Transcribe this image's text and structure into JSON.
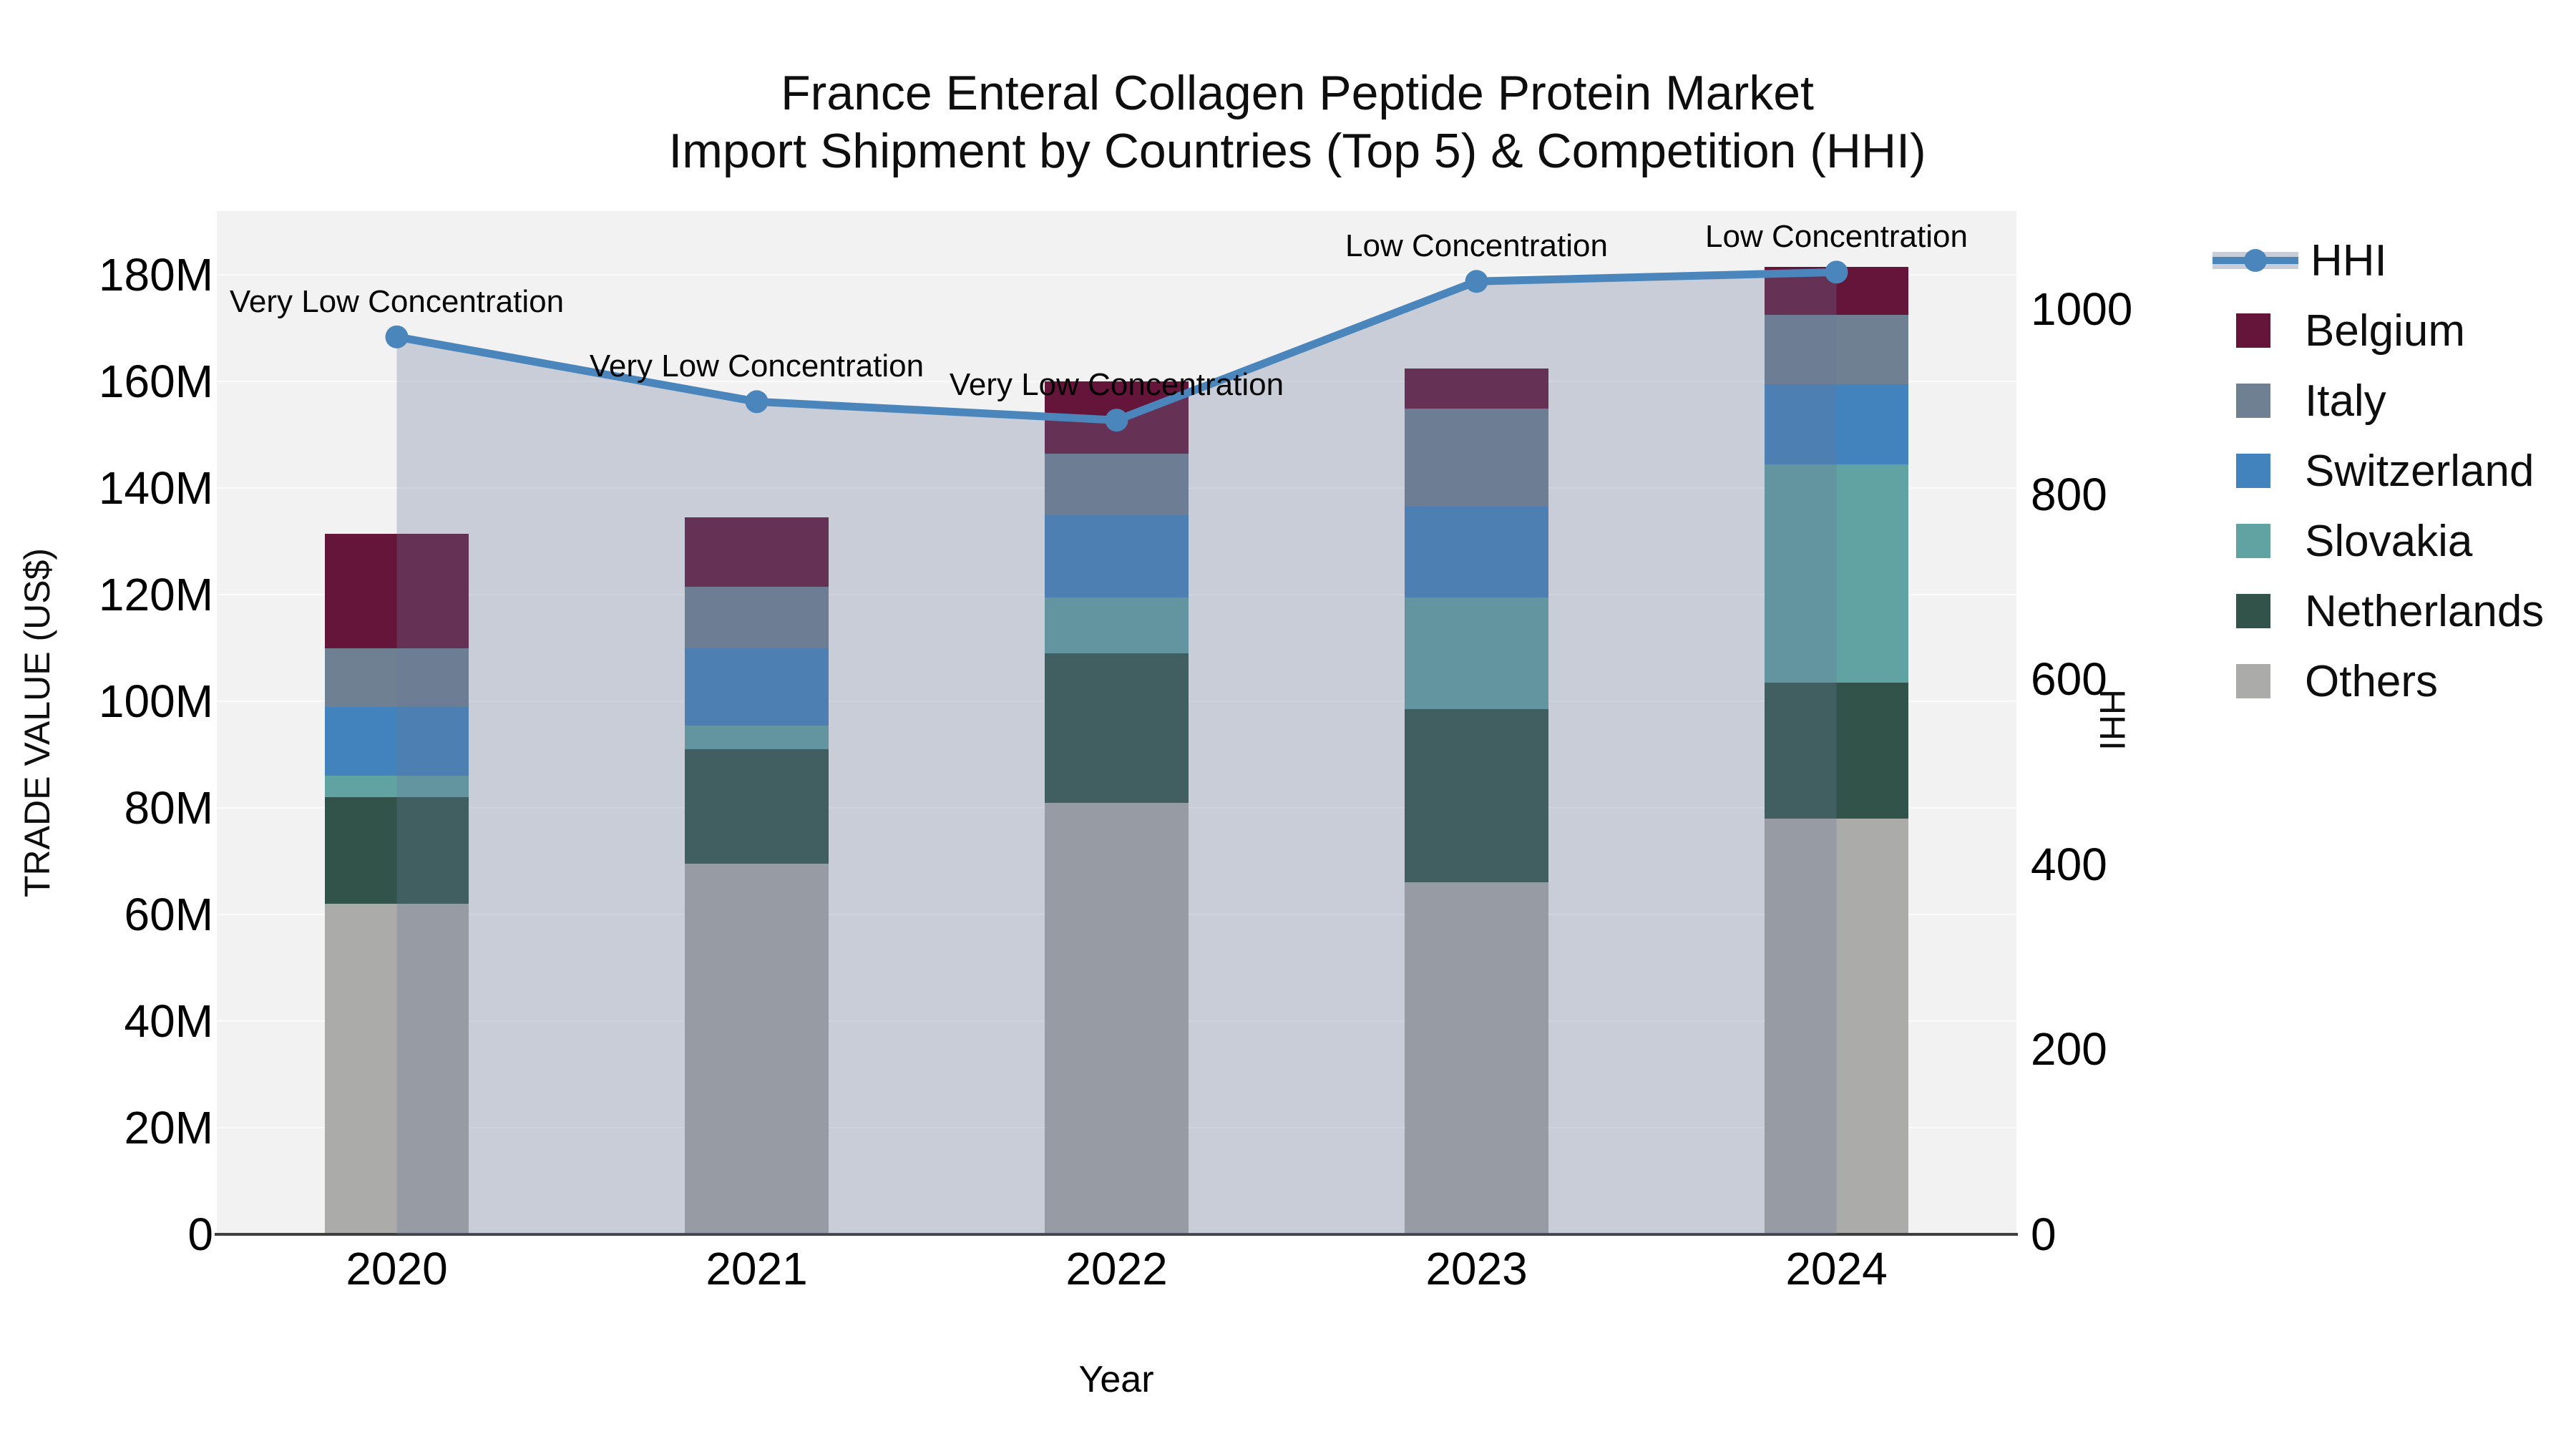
{
  "title": {
    "line1": "France Enteral Collagen Peptide Protein Market",
    "line2": "Import Shipment by Countries (Top 5) & Competition (HHI)"
  },
  "axes": {
    "x_title": "Year",
    "y_left_title": "TRADE VALUE (US$)",
    "y_right_title": "HHI",
    "y_left_ticks": [
      "0",
      "20M",
      "40M",
      "60M",
      "80M",
      "100M",
      "120M",
      "140M",
      "160M",
      "180M"
    ],
    "y_left_tick_values": [
      0,
      20,
      40,
      60,
      80,
      100,
      120,
      140,
      160,
      180
    ],
    "y_right_ticks": [
      "0",
      "200",
      "400",
      "600",
      "800",
      "1000"
    ],
    "y_right_tick_values": [
      0,
      200,
      400,
      600,
      800,
      1000
    ]
  },
  "chart_data": {
    "type": "bar",
    "subtype": "stacked-bars-with-line-overlay",
    "title": "France Enteral Collagen Peptide Protein Market Import Shipment by Countries (Top 5) & Competition (HHI)",
    "xlabel": "Year",
    "ylabel": "TRADE VALUE (US$)",
    "ylabel_right": "HHI",
    "units": "millions US$",
    "categories": [
      "2020",
      "2021",
      "2022",
      "2023",
      "2024"
    ],
    "stack_order_bottom_to_top": [
      "Others",
      "Netherlands",
      "Slovakia",
      "Switzerland",
      "Italy",
      "Belgium"
    ],
    "series": [
      {
        "name": "Others",
        "color": "#ababa9",
        "values": [
          62,
          69.5,
          81,
          66,
          78
        ]
      },
      {
        "name": "Netherlands",
        "color": "#315349",
        "values": [
          20,
          21.5,
          28,
          32.5,
          25.5
        ]
      },
      {
        "name": "Slovakia",
        "color": "#61a2a3",
        "values": [
          4,
          4.5,
          10.5,
          21,
          41
        ]
      },
      {
        "name": "Switzerland",
        "color": "#4383bd",
        "values": [
          13,
          14.5,
          15.5,
          17,
          15
        ]
      },
      {
        "name": "Italy",
        "color": "#6f8092",
        "values": [
          11,
          11.5,
          11.5,
          18.5,
          13
        ]
      },
      {
        "name": "Belgium",
        "color": "#651539",
        "values": [
          21.5,
          13,
          13.5,
          7.5,
          9
        ]
      }
    ],
    "bar_totals": [
      131.5,
      134.5,
      160,
      162.5,
      181.5
    ],
    "line_series": {
      "name": "HHI",
      "color": "#4a86bb",
      "values": [
        970,
        900,
        880,
        1030,
        1040
      ],
      "area_fill": "rgba(103,119,151,0.30)"
    },
    "annotations": [
      {
        "x": "2020",
        "text": "Very Low Concentration"
      },
      {
        "x": "2021",
        "text": "Very Low Concentration"
      },
      {
        "x": "2022",
        "text": "Very Low Concentration"
      },
      {
        "x": "2023",
        "text": "Low Concentration"
      },
      {
        "x": "2024",
        "text": "Low Concentration"
      }
    ],
    "ylim_left": [
      0,
      192
    ],
    "ylim_right": [
      0,
      1106
    ],
    "grid": true,
    "legend_position": "right"
  },
  "legend": {
    "items": [
      {
        "label": "HHI",
        "type": "line",
        "color": "#4a86bb"
      },
      {
        "label": "Belgium",
        "type": "swatch",
        "color": "#651539"
      },
      {
        "label": "Italy",
        "type": "swatch",
        "color": "#6f8092"
      },
      {
        "label": "Switzerland",
        "type": "swatch",
        "color": "#4383bd"
      },
      {
        "label": "Slovakia",
        "type": "swatch",
        "color": "#61a2a3"
      },
      {
        "label": "Netherlands",
        "type": "swatch",
        "color": "#315349"
      },
      {
        "label": "Others",
        "type": "swatch",
        "color": "#ababa9"
      }
    ]
  },
  "colors": {
    "plot_bg": "#f2f2f3",
    "grid": "#fbfbfc",
    "axis_line": "#3f3f3f",
    "hhi_line": "#4a86bb",
    "area_fill": "rgba(103,119,151,0.30)",
    "text": "#000000"
  }
}
